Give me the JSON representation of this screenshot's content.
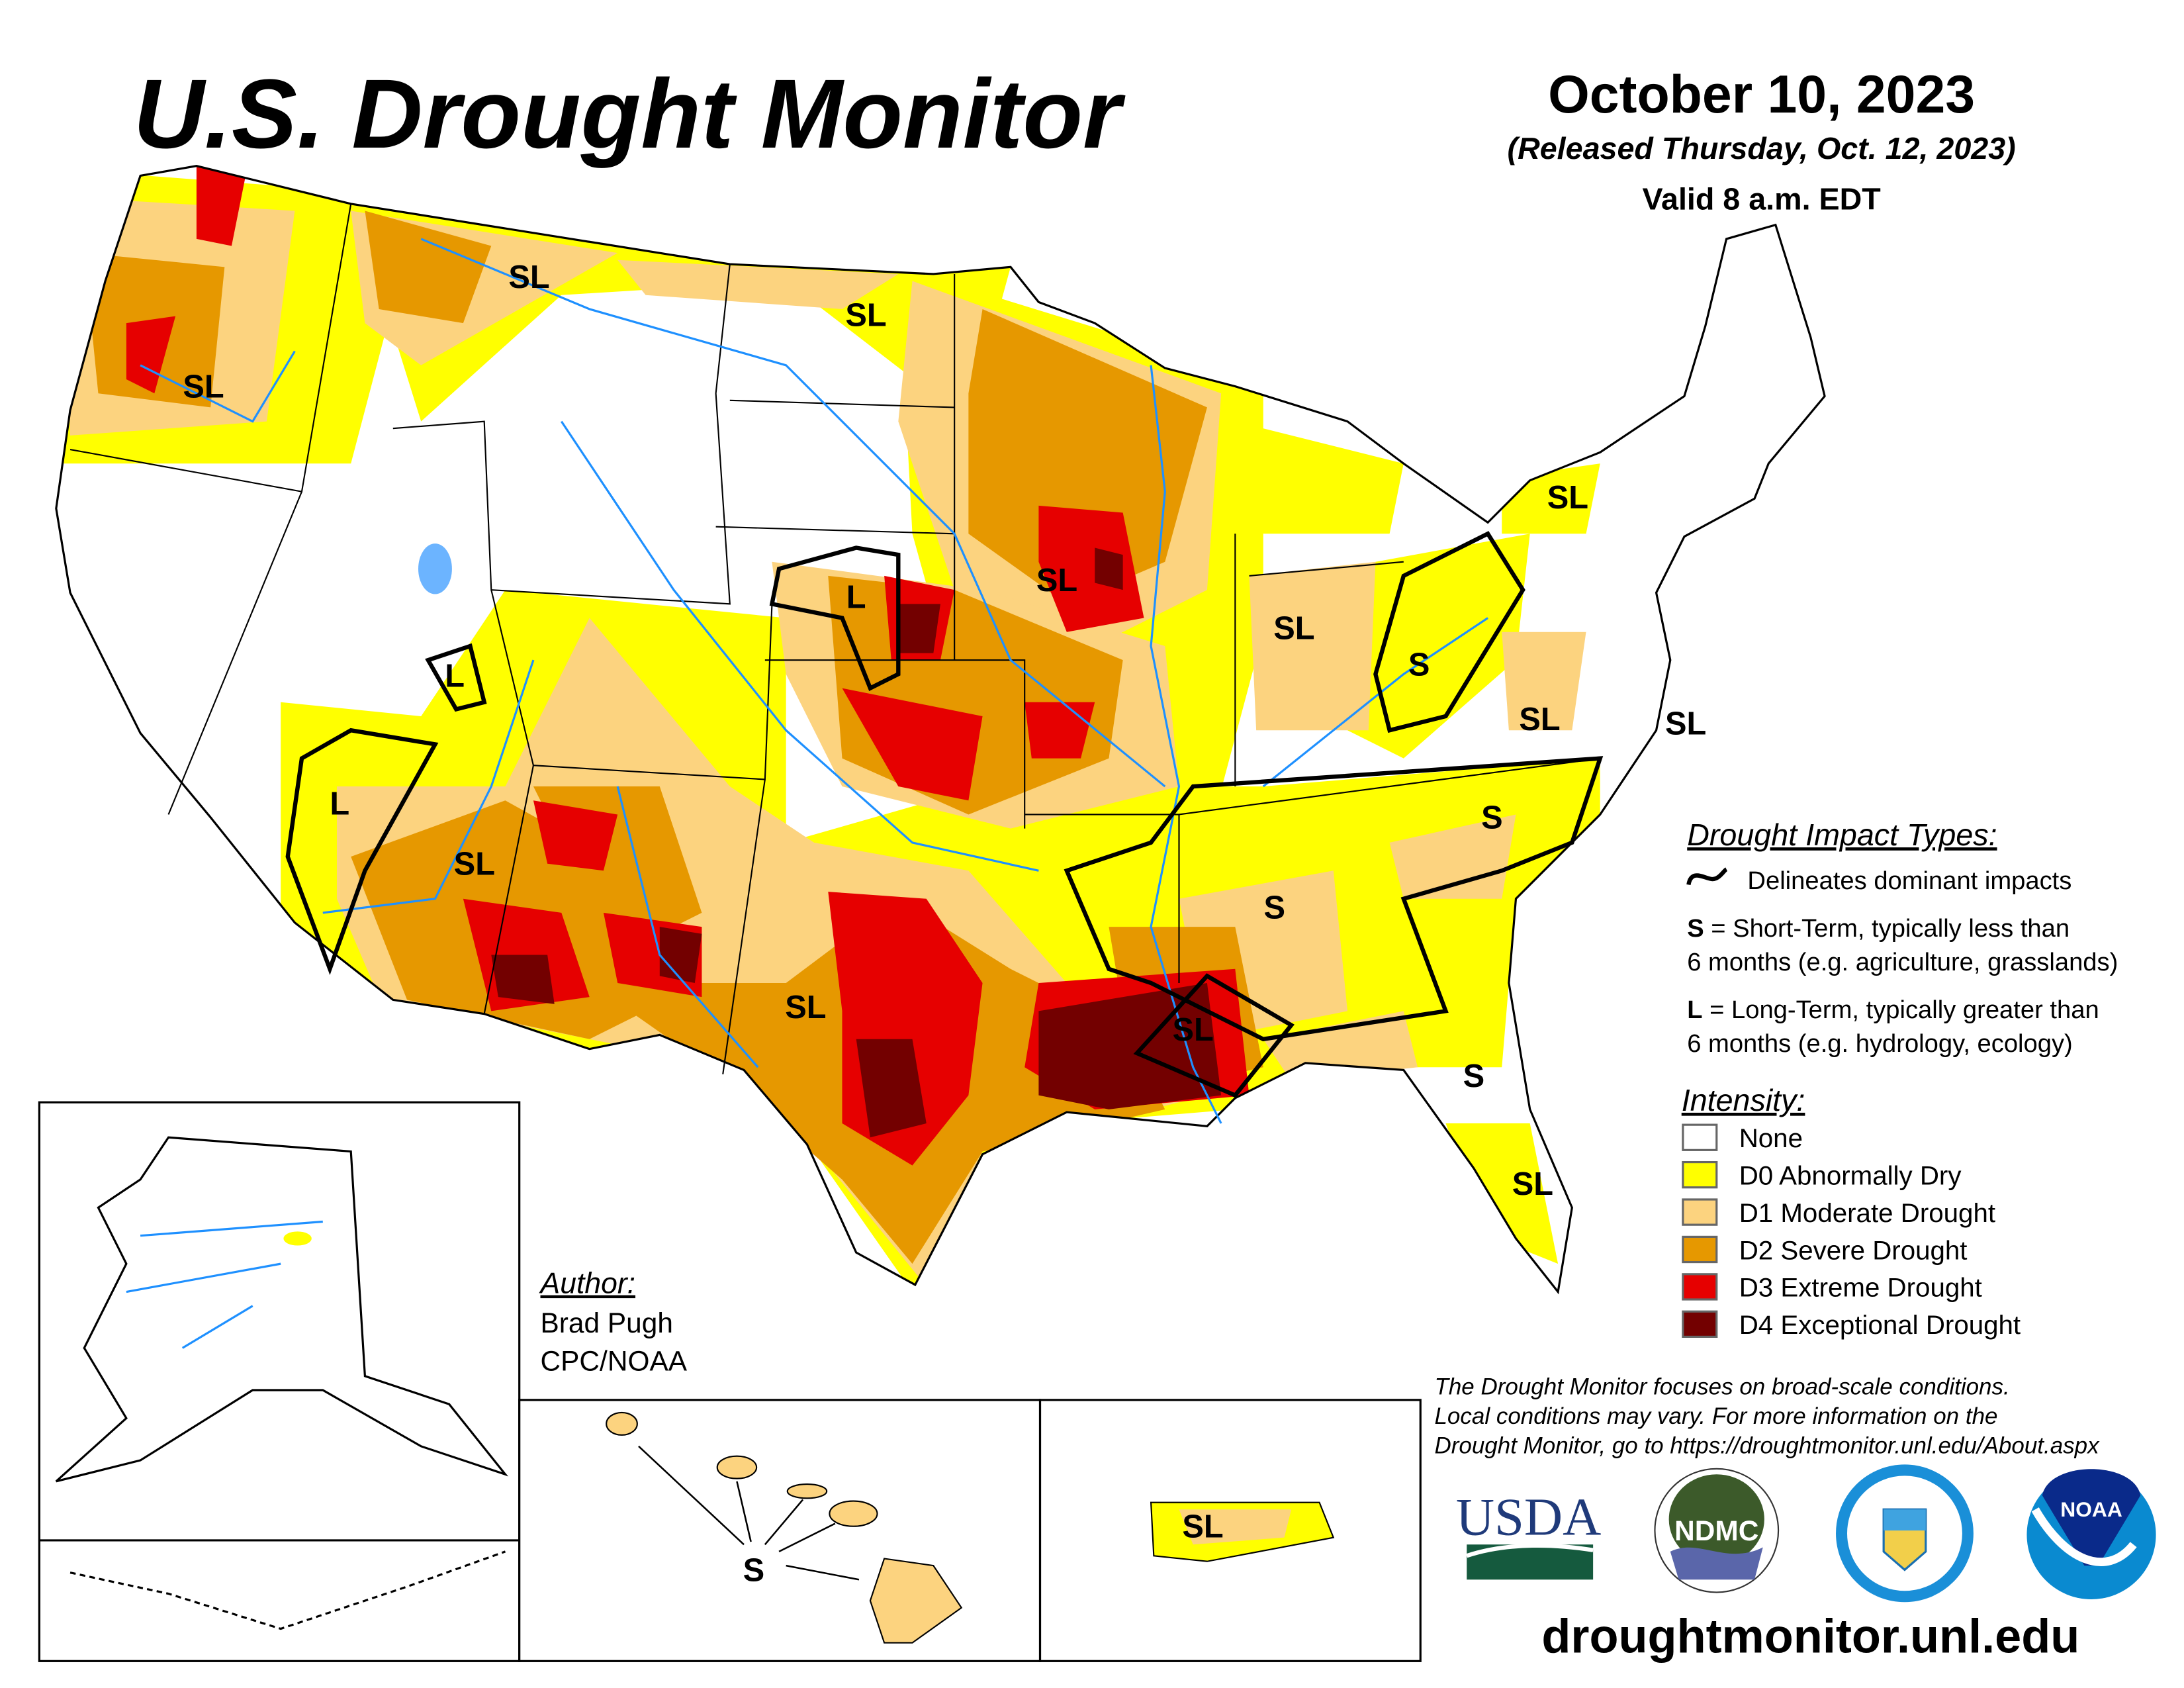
{
  "header": {
    "title": "U.S. Drought Monitor",
    "date": "October 10, 2023",
    "released": "(Released Thursday, Oct. 12, 2023)",
    "valid": "Valid 8 a.m. EDT"
  },
  "impact_legend": {
    "title": "Drought Impact Types:",
    "delineates": "Delineates dominant impacts",
    "s_key": "S",
    "s_line1": " = Short-Term, typically less than",
    "s_line2": "6 months (e.g. agriculture, grasslands)",
    "l_key": "L",
    "l_line1": " = Long-Term, typically greater than",
    "l_line2": "6 months (e.g. hydrology, ecology)"
  },
  "intensity_legend": {
    "title": "Intensity:",
    "items": [
      {
        "label": "None",
        "color": "#ffffff"
      },
      {
        "label": "D0 Abnormally Dry",
        "color": "#ffff00"
      },
      {
        "label": "D1 Moderate Drought",
        "color": "#fcd37f"
      },
      {
        "label": "D2 Severe Drought",
        "color": "#e69800"
      },
      {
        "label": "D3 Extreme Drought",
        "color": "#e60000"
      },
      {
        "label": "D4 Exceptional Drought",
        "color": "#730000"
      }
    ]
  },
  "map_labels": [
    "SL",
    "SL",
    "SL",
    "SL",
    "SL",
    "SL",
    "SL",
    "SL",
    "SL",
    "SL",
    "SL",
    "SL",
    "S",
    "S",
    "S",
    "S",
    "L",
    "L",
    "L",
    "S",
    "SL"
  ],
  "author": {
    "heading": "Author:",
    "name": "Brad Pugh",
    "org": "CPC/NOAA"
  },
  "disclaimer": {
    "line1": "The Drought Monitor focuses on broad-scale conditions.",
    "line2": "Local conditions may vary. For more information on the",
    "line3": "Drought Monitor, go to https://droughtmonitor.unl.edu/About.aspx"
  },
  "logos": {
    "usda": "USDA",
    "ndmc": "NDMC",
    "doc": "DEPARTMENT OF COMMERCE",
    "noaa": "NOAA"
  },
  "footer_url": "droughtmonitor.unl.edu",
  "colors": {
    "water": "#1e90ff",
    "d0": "#ffff00",
    "d1": "#fcd37f",
    "d2": "#e69800",
    "d3": "#e60000",
    "d4": "#730000"
  }
}
